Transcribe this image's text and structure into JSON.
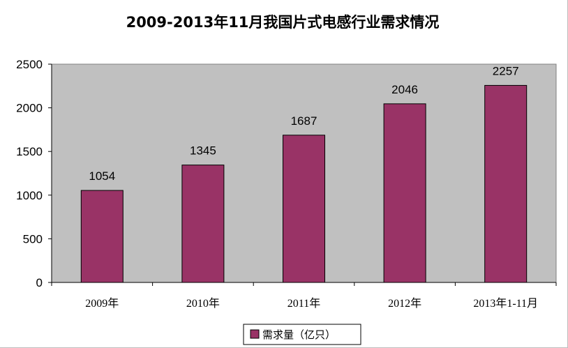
{
  "chart_data": {
    "type": "bar",
    "title": "2009-2013年11月我国片式电感行业需求情况",
    "categories": [
      "2009年",
      "2010年",
      "2011年",
      "2012年",
      "2013年1-11月"
    ],
    "series": [
      {
        "name": "需求量（亿只）",
        "values": [
          1054,
          1345,
          1687,
          2046,
          2257
        ]
      }
    ],
    "ylim": [
      0,
      2500
    ],
    "y_ticks": [
      0,
      500,
      1000,
      1500,
      2000,
      2500
    ],
    "grid": false,
    "legend_position": "bottom",
    "colors": {
      "plot_background": "#c0c0c0",
      "bar_fill": "#993366",
      "axis": "#000000"
    }
  }
}
